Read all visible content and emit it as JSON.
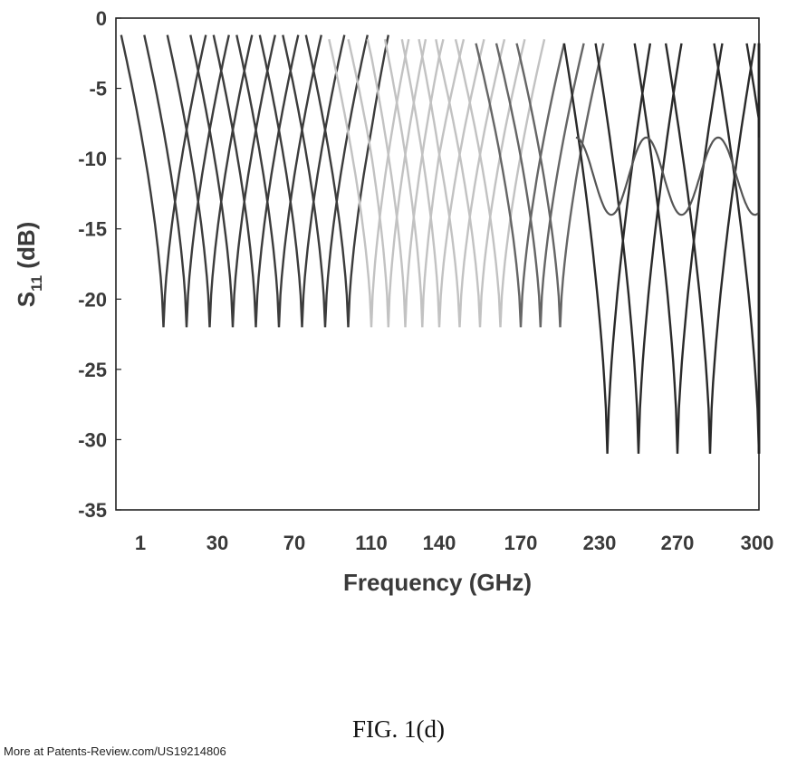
{
  "chart_data": {
    "type": "line",
    "title": "",
    "xlabel": "Frequency (GHz)",
    "ylabel_main": "S",
    "ylabel_sub": "11",
    "ylabel_unit": " (dB)",
    "x_categories": [
      "1",
      "30",
      "70",
      "110",
      "140",
      "170",
      "230",
      "270",
      "300"
    ],
    "ylim": [
      -35,
      0
    ],
    "yticks": [
      "0",
      "-5",
      "-10",
      "-15",
      "-20",
      "-25",
      "-30",
      "-35"
    ],
    "grid": false,
    "legend": "none",
    "series_groups": [
      {
        "name": "",
        "color": "#3c3c3c",
        "min_db": -22,
        "max_db": -1.2,
        "centers": [
          0.3,
          0.6,
          0.9,
          1.2,
          1.5,
          1.8,
          2.1,
          2.4,
          2.7
        ]
      },
      {
        "name": "",
        "color": "#c2c2c2",
        "min_db": -22,
        "max_db": -1.5,
        "centers": [
          3.0,
          3.25,
          3.5,
          3.75,
          4.0,
          4.25,
          4.5,
          4.75
        ]
      },
      {
        "name": "",
        "color": "#666666",
        "min_db": -22,
        "max_db": -1.8,
        "centers": [
          5.0,
          5.25,
          5.5
        ]
      },
      {
        "name": "",
        "color": "#2a2a2a",
        "min_db": -31,
        "max_db": -1.8,
        "centers": [
          6.1,
          6.5,
          7.0,
          7.4,
          8.0,
          8.4,
          8.8,
          9.3,
          9.6
        ]
      }
    ],
    "secondary_ripple": {
      "color": "#555555",
      "min_db": -14,
      "max_db": -8.5,
      "from_x": 5.7,
      "to_x": 9.0
    }
  },
  "caption": "FIG. 1(d)",
  "source_note": "More at Patents-Review.com/US19214806"
}
